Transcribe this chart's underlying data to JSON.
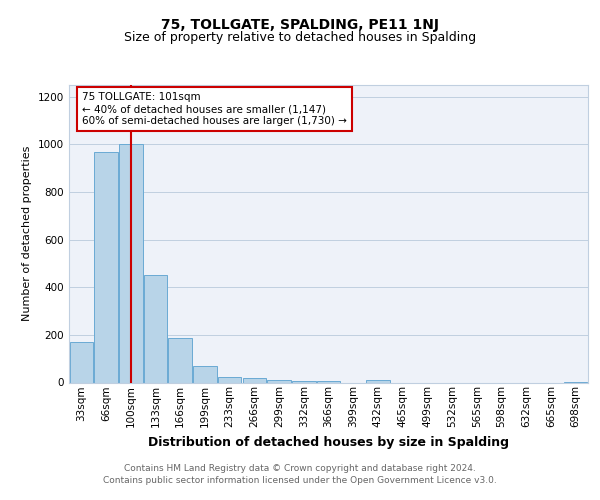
{
  "title": "75, TOLLGATE, SPALDING, PE11 1NJ",
  "subtitle": "Size of property relative to detached houses in Spalding",
  "xlabel": "Distribution of detached houses by size in Spalding",
  "ylabel": "Number of detached properties",
  "categories": [
    "33sqm",
    "66sqm",
    "100sqm",
    "133sqm",
    "166sqm",
    "199sqm",
    "233sqm",
    "266sqm",
    "299sqm",
    "332sqm",
    "366sqm",
    "399sqm",
    "432sqm",
    "465sqm",
    "499sqm",
    "532sqm",
    "565sqm",
    "598sqm",
    "632sqm",
    "665sqm",
    "698sqm"
  ],
  "values": [
    170,
    970,
    1000,
    450,
    185,
    70,
    25,
    18,
    10,
    7,
    5,
    0,
    11,
    0,
    0,
    0,
    0,
    0,
    0,
    0,
    3
  ],
  "bar_color": "#b8d4e8",
  "bar_edge_color": "#6aaad4",
  "vline_x": 2,
  "vline_color": "#cc0000",
  "annotation_text": "75 TOLLGATE: 101sqm\n← 40% of detached houses are smaller (1,147)\n60% of semi-detached houses are larger (1,730) →",
  "annotation_box_facecolor": "#ffffff",
  "annotation_box_edgecolor": "#cc0000",
  "ylim": [
    0,
    1250
  ],
  "yticks": [
    0,
    200,
    400,
    600,
    800,
    1000,
    1200
  ],
  "footer_line1": "Contains HM Land Registry data © Crown copyright and database right 2024.",
  "footer_line2": "Contains public sector information licensed under the Open Government Licence v3.0.",
  "plot_bg_color": "#eef2f9",
  "title_fontsize": 10,
  "subtitle_fontsize": 9,
  "ylabel_fontsize": 8,
  "xlabel_fontsize": 9,
  "tick_fontsize": 7.5,
  "footer_fontsize": 6.5,
  "footer_color": "#666666"
}
